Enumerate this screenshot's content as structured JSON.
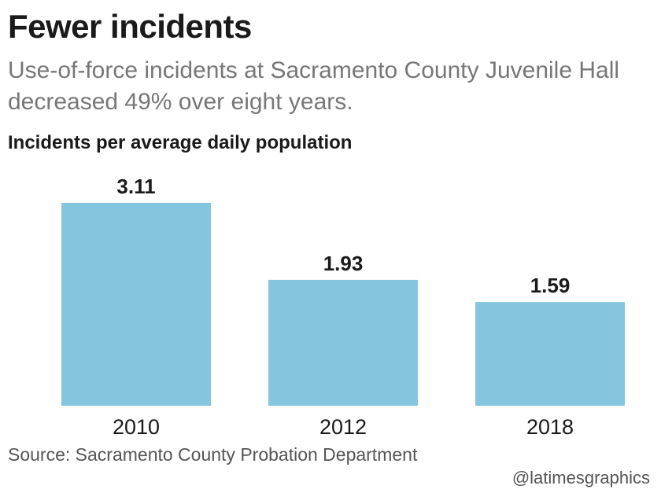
{
  "header": {
    "title": "Fewer incidents",
    "subtitle": "Use-of-force incidents at Sacramento County Juvenile Hall decreased 49% over eight years."
  },
  "footer": {
    "source": "Source: Sacramento County Probation Department",
    "credit": "@latimesgraphics"
  },
  "chart_data": {
    "type": "bar",
    "title": "Fewer incidents",
    "subtitle": "Use-of-force incidents at Sacramento County Juvenile Hall decreased 49% over eight years.",
    "ylabel": "Incidents per average daily population",
    "xlabel": "",
    "categories": [
      "2010",
      "2012",
      "2018"
    ],
    "values": [
      3.11,
      1.93,
      1.59
    ],
    "value_labels": [
      "3.11",
      "1.93",
      "1.59"
    ],
    "ylim": [
      0,
      3.11
    ],
    "grid": false,
    "legend": "none",
    "bar_color": "#85c5de",
    "text_color": "#1a1a1a"
  }
}
